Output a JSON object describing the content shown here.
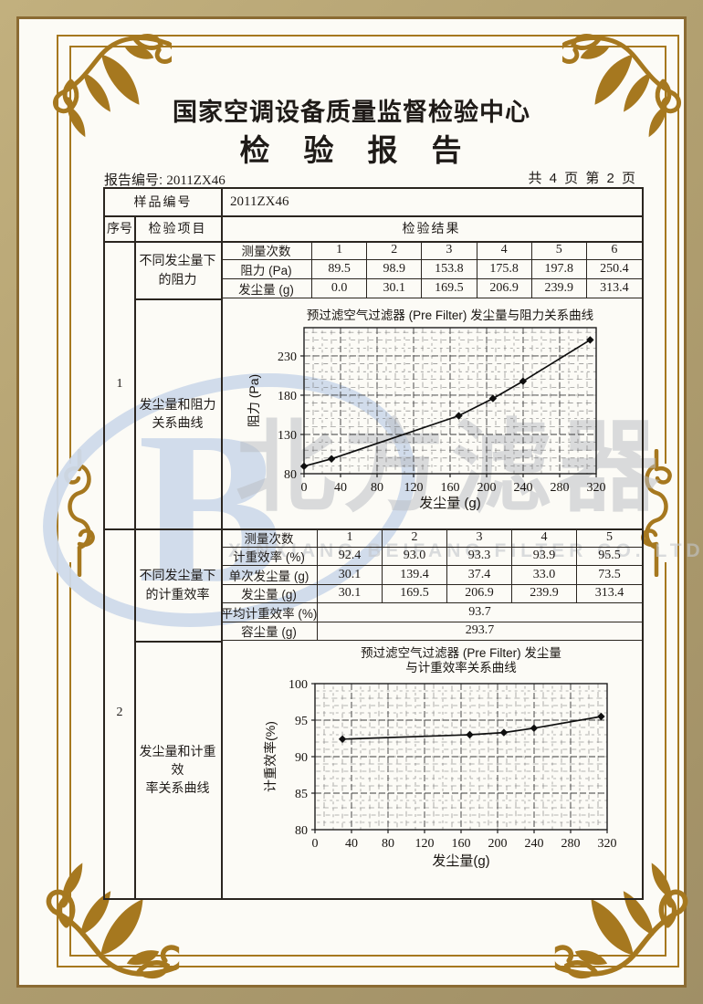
{
  "header": {
    "center_name": "国家空调设备质量监督检验中心",
    "report_title": "检　验　报　告",
    "report_no_label": "报告编号:",
    "report_no_value": "2011ZX46",
    "page_info": "共 4 页 第 2 页"
  },
  "sample_row": {
    "label": "样品编号",
    "value": "2011ZX46"
  },
  "table_headers": {
    "seq": "序号",
    "item": "检验项目",
    "result": "检验结果"
  },
  "sections": [
    {
      "seq": "1",
      "item_top": "不同发尘量下\n的阻力",
      "item_bottom": "发尘量和阻力\n关系曲线",
      "measure_table": {
        "rows": [
          {
            "label": "测量次数",
            "values": [
              "1",
              "2",
              "3",
              "4",
              "5",
              "6"
            ]
          },
          {
            "label": "阻力 (Pa)",
            "values": [
              "89.5",
              "98.9",
              "153.8",
              "175.8",
              "197.8",
              "250.4"
            ]
          },
          {
            "label": "发尘量 (g)",
            "values": [
              "0.0",
              "30.1",
              "169.5",
              "206.9",
              "239.9",
              "313.4"
            ]
          }
        ],
        "span_rows": []
      }
    },
    {
      "seq": "2",
      "item_top": "不同发尘量下\n的计重效率",
      "item_bottom": "发尘量和计重效\n率关系曲线",
      "measure_table": {
        "rows": [
          {
            "label": "测量次数",
            "values": [
              "1",
              "2",
              "3",
              "4",
              "5"
            ]
          },
          {
            "label": "计重效率 (%)",
            "values": [
              "92.4",
              "93.0",
              "93.3",
              "93.9",
              "95.5"
            ]
          },
          {
            "label": "单次发尘量 (g)",
            "values": [
              "30.1",
              "139.4",
              "37.4",
              "33.0",
              "73.5"
            ]
          },
          {
            "label": "发尘量 (g)",
            "values": [
              "30.1",
              "169.5",
              "206.9",
              "239.9",
              "313.4"
            ]
          }
        ],
        "span_rows": [
          {
            "label": "平均计重效率 (%)",
            "value": "93.7"
          },
          {
            "label": "容尘量 (g)",
            "value": "293.7"
          }
        ]
      }
    }
  ],
  "chart_data": [
    {
      "type": "line",
      "title_lines": [
        "预过滤空气过滤器 (Pre Filter) 发尘量与阻力关系曲线"
      ],
      "x": [
        0,
        30.1,
        169.5,
        206.9,
        239.9,
        313.4
      ],
      "y": [
        89.5,
        98.9,
        153.8,
        175.8,
        197.8,
        250.4
      ],
      "xlabel": "发尘量 (g)",
      "ylabel": "阻力 (Pa)",
      "xlim": [
        0,
        320
      ],
      "ylim": [
        80,
        266
      ],
      "xticks": [
        0,
        40,
        80,
        120,
        160,
        200,
        240,
        280,
        320
      ],
      "yticks": [
        80,
        130,
        180,
        230
      ],
      "grid": "dense-dashed",
      "legend": "none",
      "marker": "diamond"
    },
    {
      "type": "line",
      "title_lines": [
        "预过滤空气过滤器 (Pre Filter) 发尘量",
        "与计重效率关系曲线"
      ],
      "x": [
        30.1,
        169.5,
        206.9,
        239.9,
        313.4
      ],
      "y": [
        92.4,
        93.0,
        93.3,
        93.9,
        95.5
      ],
      "xlabel": "发尘量(g)",
      "ylabel": "计重效率(%)",
      "xlim": [
        0,
        320
      ],
      "ylim": [
        80,
        100
      ],
      "xticks": [
        0,
        40,
        80,
        120,
        160,
        200,
        240,
        280,
        320
      ],
      "yticks": [
        80,
        85,
        90,
        95,
        100
      ],
      "grid": "dense-dashed",
      "legend": "none",
      "marker": "diamond"
    }
  ],
  "watermark": {
    "logo_letter": "B",
    "brand_text": "北方滤器",
    "company_text": "XINXIANG BEIFANG FILTER CO. LTD."
  },
  "colors": {
    "frame_band": "#b3a171",
    "frame_gold": "#a6781f",
    "ink": "#2a251f",
    "paper": "#fcfbf6",
    "watermark_blue": "#cfdbeb",
    "watermark_gray": "#bdc0c5"
  }
}
